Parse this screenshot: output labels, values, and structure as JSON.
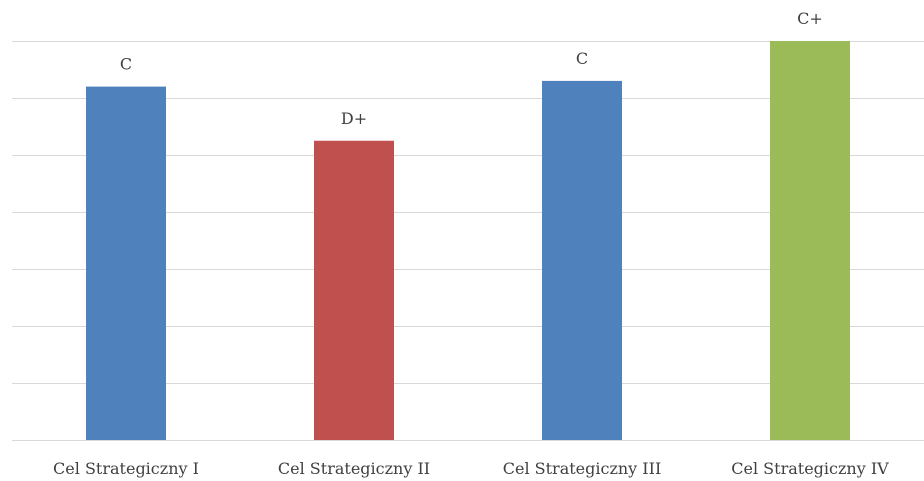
{
  "chart_data": {
    "type": "bar",
    "title": "",
    "xlabel": "",
    "ylabel": "",
    "categories": [
      "Cel Strategiczny I",
      "Cel Strategiczny II",
      "Cel Strategiczny III",
      "Cel Strategiczny IV"
    ],
    "values": [
      6.2,
      5.25,
      6.3,
      7.0
    ],
    "data_labels": [
      "C",
      "D+",
      "C",
      "C+"
    ],
    "bar_colors": [
      "#4f81bd",
      "#c0504d",
      "#4f81bd",
      "#9bbb59"
    ],
    "ylim": [
      0,
      7
    ],
    "y_gridlines": [
      0,
      1,
      2,
      3,
      4,
      5,
      6,
      7
    ],
    "y_tick_labels_shown": false,
    "grid": true,
    "legend": "none"
  }
}
